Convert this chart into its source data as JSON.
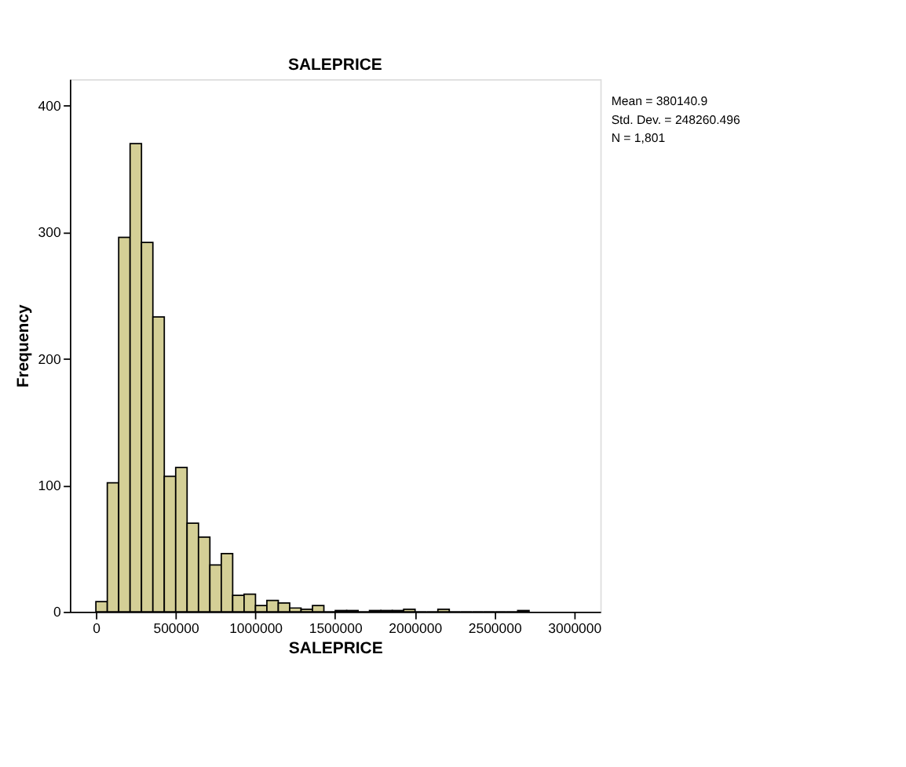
{
  "chart_data": {
    "type": "histogram",
    "title": "SALEPRICE",
    "xlabel": "SALEPRICE",
    "ylabel": "Frequency",
    "bins": [
      0,
      71500,
      143000,
      214500,
      286000,
      357500,
      429000,
      500500,
      572000,
      643500,
      715000,
      786500,
      858000,
      929500,
      1001000,
      1072500,
      1144000,
      1215500,
      1287000,
      1358500,
      1430000,
      1501500,
      1573000,
      1644500,
      1716000,
      1787500,
      1859000,
      1930500,
      2002000,
      2073500,
      2145000,
      2216500,
      2288000,
      2359500,
      2431000,
      2502500,
      2574000,
      2645500,
      2717000
    ],
    "values": [
      8,
      102,
      296,
      370,
      292,
      233,
      107,
      114,
      70,
      59,
      37,
      46,
      13,
      14,
      5,
      9,
      7,
      3,
      2,
      5,
      0,
      1,
      1,
      0,
      1,
      1,
      1,
      2,
      0,
      0,
      2,
      0,
      0,
      0,
      0,
      0,
      0,
      1
    ],
    "color": "#d4cf96",
    "xlim": [
      -163000,
      3164000
    ],
    "xticks": [
      0,
      500000,
      1000000,
      1500000,
      2000000,
      2500000,
      3000000
    ],
    "ylim": [
      0,
      421
    ],
    "yticks": [
      0,
      100,
      200,
      300,
      400
    ],
    "grid": false,
    "annotations": [
      "Mean = 380140.9",
      "Std. Dev. = 248260.496",
      "N = 1,801"
    ]
  }
}
